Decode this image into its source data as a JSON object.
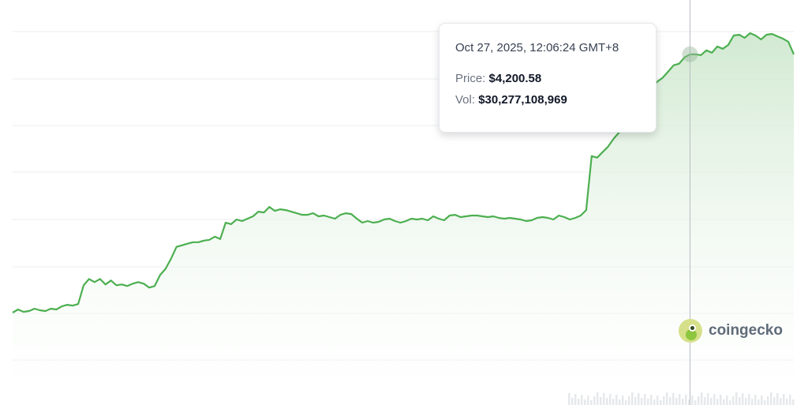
{
  "chart_data": {
    "type": "area",
    "grid": true,
    "color": "#4caf50",
    "fill_color": "#c8e6c9",
    "y_values": [
      3870,
      3874,
      3871,
      3872,
      3875,
      3873,
      3872,
      3875,
      3874,
      3878,
      3880,
      3879,
      3881,
      3905,
      3913,
      3909,
      3913,
      3906,
      3911,
      3905,
      3906,
      3904,
      3907,
      3909,
      3907,
      3902,
      3904,
      3918,
      3926,
      3939,
      3954,
      3956,
      3958,
      3960,
      3960,
      3962,
      3963,
      3967,
      3964,
      3985,
      3983,
      3989,
      3987,
      3990,
      3993,
      3999,
      3998,
      4005,
      4000,
      4002,
      4001,
      3999,
      3997,
      3995,
      3995,
      3997,
      3993,
      3994,
      3992,
      3990,
      3995,
      3997,
      3996,
      3990,
      3985,
      3987,
      3985,
      3986,
      3989,
      3990,
      3987,
      3985,
      3987,
      3990,
      3989,
      3990,
      3988,
      3993,
      3990,
      3988,
      3994,
      3995,
      3992,
      3993,
      3994,
      3994,
      3993,
      3992,
      3993,
      3991,
      3990,
      3991,
      3990,
      3989,
      3987,
      3988,
      3991,
      3992,
      3991,
      3989,
      3994,
      3992,
      3989,
      3991,
      3994,
      4001,
      4070,
      4068,
      4075,
      4082,
      4092,
      4100,
      4110,
      4125,
      4135,
      4140,
      4150,
      4158,
      4165,
      4170,
      4178,
      4186,
      4188,
      4196,
      4200,
      4200,
      4199,
      4205,
      4202,
      4210,
      4207,
      4212,
      4224,
      4225,
      4221,
      4227,
      4224,
      4219,
      4225,
      4226,
      4223,
      4220,
      4216,
      4200
    ],
    "tooltip": {
      "date": "Oct 27, 2025, 12:06:24 GMT+8",
      "price_label": "Price:",
      "price_value": "$4,200.58",
      "vol_label": "Vol:",
      "vol_value": "$30,277,108,969"
    },
    "hover_index": 124
  },
  "brand": {
    "name": "coingecko",
    "icon": "gecko-logo-icon"
  }
}
